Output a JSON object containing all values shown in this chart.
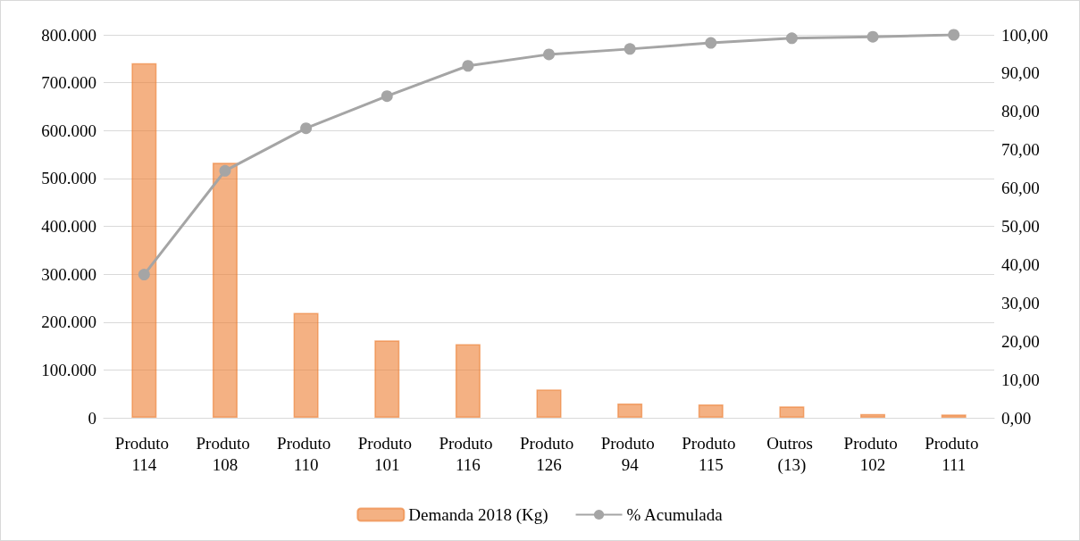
{
  "chart_data": {
    "type": "bar",
    "categories": [
      "Produto 114",
      "Produto 108",
      "Produto 110",
      "Produto 101",
      "Produto 116",
      "Produto 126",
      "Produto 94",
      "Produto 115",
      "Outros (13)",
      "Produto 102",
      "Produto 111"
    ],
    "series": [
      {
        "name": "Demanda 2018 (Kg)",
        "color": "#ed7d31",
        "values": [
          741000,
          533000,
          219000,
          162000,
          154000,
          59000,
          30000,
          28000,
          24000,
          8000,
          7000
        ]
      },
      {
        "name": "% Acumulada",
        "type": "line",
        "axis": "y2",
        "color": "#a5a5a5",
        "marker": "circle",
        "values": [
          37.4,
          64.5,
          75.6,
          84.0,
          91.9,
          94.9,
          96.3,
          97.9,
          99.1,
          99.5,
          100
        ]
      }
    ],
    "ylim": [
      0,
      800000
    ],
    "yticks": [
      {
        "value": 0,
        "label": "0"
      },
      {
        "value": 100000,
        "label": "100.000"
      },
      {
        "value": 200000,
        "label": "200.000"
      },
      {
        "value": 300000,
        "label": "300.000"
      },
      {
        "value": 400000,
        "label": "400.000"
      },
      {
        "value": 500000,
        "label": "500.000"
      },
      {
        "value": 600000,
        "label": "600.000"
      },
      {
        "value": 700000,
        "label": "700.000"
      },
      {
        "value": 800000,
        "label": "800.000"
      }
    ],
    "y2lim": [
      0,
      100
    ],
    "y2ticks": [
      {
        "value": 0,
        "label": "0,00"
      },
      {
        "value": 10,
        "label": "10,00"
      },
      {
        "value": 20,
        "label": "20,00"
      },
      {
        "value": 30,
        "label": "30,00"
      },
      {
        "value": 40,
        "label": "40,00"
      },
      {
        "value": 50,
        "label": "50,00"
      },
      {
        "value": 60,
        "label": "60,00"
      },
      {
        "value": 70,
        "label": "70,00"
      },
      {
        "value": 80,
        "label": "80,00"
      },
      {
        "value": 90,
        "label": "90,00"
      },
      {
        "value": 100,
        "label": "100,00"
      }
    ],
    "grid": "y",
    "legend": "bottom"
  }
}
